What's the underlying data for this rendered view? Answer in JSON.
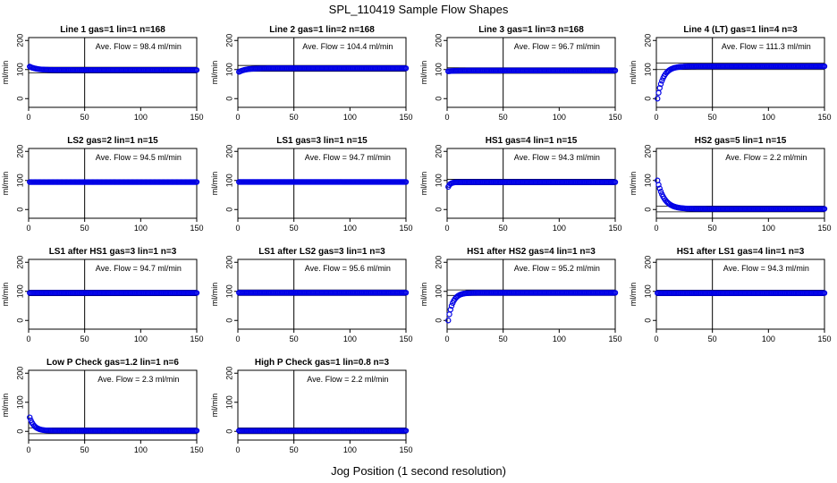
{
  "title": "SPL_110419  Sample Flow Shapes",
  "xlabel": "Jog Position (1 second resolution)",
  "colors": {
    "points": "#0000e6",
    "lines": "#000000"
  },
  "chart_data": [
    {
      "type": "scatter",
      "title": "Line 1 gas=1 lin=1 n=168",
      "ylabel": "ml/min",
      "annotation": "Ave. Flow =  98.4  ml/min",
      "xlim": [
        0,
        150
      ],
      "ylim": [
        -30,
        210
      ],
      "xticks": [
        0,
        50,
        100,
        150
      ],
      "yticks": [
        0,
        100,
        200
      ],
      "vline": 50,
      "hlines": [
        88,
        108
      ],
      "shape": {
        "kind": "flat",
        "start": 110,
        "end": 98.4
      }
    },
    {
      "type": "scatter",
      "title": "Line 2 gas=1 lin=2 n=168",
      "ylabel": "ml/min",
      "annotation": "Ave. Flow =  104.4  ml/min",
      "xlim": [
        0,
        150
      ],
      "ylim": [
        -30,
        210
      ],
      "xticks": [
        0,
        50,
        100,
        150
      ],
      "yticks": [
        0,
        100,
        200
      ],
      "vline": 50,
      "hlines": [
        94,
        114
      ],
      "shape": {
        "kind": "flat",
        "start": 92,
        "end": 104.4
      }
    },
    {
      "type": "scatter",
      "title": "Line 3 gas=1 lin=3 n=168",
      "ylabel": "ml/min",
      "annotation": "Ave. Flow =  96.7  ml/min",
      "xlim": [
        0,
        150
      ],
      "ylim": [
        -30,
        210
      ],
      "xticks": [
        0,
        50,
        100,
        150
      ],
      "yticks": [
        0,
        100,
        200
      ],
      "vline": 50,
      "hlines": [
        87,
        106
      ],
      "shape": {
        "kind": "flat",
        "start": 94,
        "end": 96.7
      }
    },
    {
      "type": "scatter",
      "title": "Line 4 (LT) gas=1 lin=4 n=3",
      "ylabel": "ml/min",
      "annotation": "Ave. Flow =  111.3  ml/min",
      "xlim": [
        0,
        150
      ],
      "ylim": [
        -30,
        210
      ],
      "xticks": [
        0,
        50,
        100,
        150
      ],
      "yticks": [
        0,
        100,
        200
      ],
      "vline": 50,
      "hlines": [
        100,
        122
      ],
      "shape": {
        "kind": "rise",
        "start": 0,
        "end": 111.3,
        "tau": 5
      }
    },
    {
      "type": "scatter",
      "title": "LS2 gas=2 lin=1 n=15",
      "ylabel": "ml/min",
      "annotation": "Ave. Flow =  94.5  ml/min",
      "xlim": [
        0,
        150
      ],
      "ylim": [
        -30,
        210
      ],
      "xticks": [
        0,
        50,
        100,
        150
      ],
      "yticks": [
        0,
        100,
        200
      ],
      "vline": 50,
      "hlines": [
        94.5,
        94.5
      ],
      "shape": {
        "kind": "flat",
        "start": 94.5,
        "end": 94.5
      }
    },
    {
      "type": "scatter",
      "title": "LS1 gas=3 lin=1 n=15",
      "ylabel": "ml/min",
      "annotation": "Ave. Flow =  94.7  ml/min",
      "xlim": [
        0,
        150
      ],
      "ylim": [
        -30,
        210
      ],
      "xticks": [
        0,
        50,
        100,
        150
      ],
      "yticks": [
        0,
        100,
        200
      ],
      "vline": 50,
      "hlines": [
        94.7,
        94.7
      ],
      "shape": {
        "kind": "flat",
        "start": 94.7,
        "end": 94.7
      }
    },
    {
      "type": "scatter",
      "title": "HS1 gas=4 lin=1 n=15",
      "ylabel": "ml/min",
      "annotation": "Ave. Flow =  94.3  ml/min",
      "xlim": [
        0,
        150
      ],
      "ylim": [
        -30,
        210
      ],
      "xticks": [
        0,
        50,
        100,
        150
      ],
      "yticks": [
        0,
        100,
        200
      ],
      "vline": 50,
      "hlines": [
        85,
        104
      ],
      "shape": {
        "kind": "rise",
        "start": 78,
        "end": 94.3,
        "tau": 2
      }
    },
    {
      "type": "scatter",
      "title": "HS2 gas=5 lin=1 n=15",
      "ylabel": "ml/min",
      "annotation": "Ave. Flow =  2.2  ml/min",
      "xlim": [
        0,
        150
      ],
      "ylim": [
        -30,
        210
      ],
      "xticks": [
        0,
        50,
        100,
        150
      ],
      "yticks": [
        0,
        100,
        200
      ],
      "vline": 50,
      "hlines": [
        -8,
        12
      ],
      "shape": {
        "kind": "decay",
        "start": 100,
        "end": 2.2,
        "tau": 6
      }
    },
    {
      "type": "scatter",
      "title": "LS1 after HS1 gas=3 lin=1 n=3",
      "ylabel": "ml/min",
      "annotation": "Ave. Flow =  94.7  ml/min",
      "xlim": [
        0,
        150
      ],
      "ylim": [
        -30,
        210
      ],
      "xticks": [
        0,
        50,
        100,
        150
      ],
      "yticks": [
        0,
        100,
        200
      ],
      "vline": 50,
      "hlines": [
        85,
        104
      ],
      "shape": {
        "kind": "flat",
        "start": 94.7,
        "end": 94.7
      }
    },
    {
      "type": "scatter",
      "title": "LS1 after LS2 gas=3 lin=1 n=3",
      "ylabel": "ml/min",
      "annotation": "Ave. Flow =  95.6  ml/min",
      "xlim": [
        0,
        150
      ],
      "ylim": [
        -30,
        210
      ],
      "xticks": [
        0,
        50,
        100,
        150
      ],
      "yticks": [
        0,
        100,
        200
      ],
      "vline": 50,
      "hlines": [
        86,
        105
      ],
      "shape": {
        "kind": "flat",
        "start": 95.6,
        "end": 95.6
      }
    },
    {
      "type": "scatter",
      "title": "HS1 after HS2 gas=4 lin=1 n=3",
      "ylabel": "ml/min",
      "annotation": "Ave. Flow =  95.2  ml/min",
      "xlim": [
        0,
        150
      ],
      "ylim": [
        -30,
        210
      ],
      "xticks": [
        0,
        50,
        100,
        150
      ],
      "yticks": [
        0,
        100,
        200
      ],
      "vline": 50,
      "hlines": [
        86,
        105
      ],
      "shape": {
        "kind": "rise",
        "start": 0,
        "end": 95.2,
        "tau": 4
      }
    },
    {
      "type": "scatter",
      "title": "HS1 after LS1 gas=4 lin=1 n=3",
      "ylabel": "ml/min",
      "annotation": "Ave. Flow =  94.3  ml/min",
      "xlim": [
        0,
        150
      ],
      "ylim": [
        -30,
        210
      ],
      "xticks": [
        0,
        50,
        100,
        150
      ],
      "yticks": [
        0,
        100,
        200
      ],
      "vline": 50,
      "hlines": [
        85,
        104
      ],
      "shape": {
        "kind": "flat",
        "start": 94.3,
        "end": 94.3
      }
    },
    {
      "type": "scatter",
      "title": "Low P Check gas=1.2 lin=1 n=6",
      "ylabel": "ml/min",
      "annotation": "Ave. Flow =  2.3  ml/min",
      "xlim": [
        0,
        150
      ],
      "ylim": [
        -30,
        210
      ],
      "xticks": [
        0,
        50,
        100,
        150
      ],
      "yticks": [
        0,
        100,
        200
      ],
      "vline": 50,
      "hlines": [
        -8,
        12
      ],
      "shape": {
        "kind": "decay",
        "start": 48,
        "end": 2.3,
        "tau": 4
      }
    },
    {
      "type": "scatter",
      "title": "High P Check gas=1 lin=0.8 n=3",
      "ylabel": "ml/min",
      "annotation": "Ave. Flow =  2.2  ml/min",
      "xlim": [
        0,
        150
      ],
      "ylim": [
        -30,
        210
      ],
      "xticks": [
        0,
        50,
        100,
        150
      ],
      "yticks": [
        0,
        100,
        200
      ],
      "vline": 50,
      "hlines": [
        -8,
        12
      ],
      "shape": {
        "kind": "flat",
        "start": 2.2,
        "end": 2.2
      }
    }
  ]
}
